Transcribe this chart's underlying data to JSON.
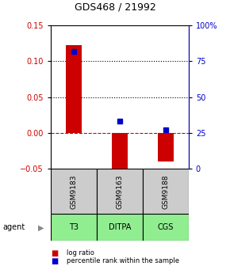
{
  "title": "GDS468 / 21992",
  "bar_positions": [
    1,
    2,
    3
  ],
  "bar_values": [
    0.122,
    -0.057,
    -0.04
  ],
  "bar_color": "#cc0000",
  "percentile_values_pct": [
    82,
    33,
    27
  ],
  "percentile_color": "#0000cc",
  "ylim_left": [
    -0.05,
    0.15
  ],
  "ylim_right": [
    0,
    100
  ],
  "yticks_left": [
    -0.05,
    0,
    0.05,
    0.1,
    0.15
  ],
  "yticks_right": [
    0,
    25,
    50,
    75,
    100
  ],
  "ytick_labels_right": [
    "0",
    "25",
    "50",
    "75",
    "100%"
  ],
  "dotted_lines": [
    0.05,
    0.1
  ],
  "sample_labels": [
    "GSM9183",
    "GSM9163",
    "GSM9188"
  ],
  "agent_labels": [
    "T3",
    "DITPA",
    "CGS"
  ],
  "agent_bg_color": "#90ee90",
  "sample_bg_color": "#cccccc",
  "legend_log_ratio": "log ratio",
  "legend_percentile": "percentile rank within the sample",
  "bar_width": 0.35,
  "agent_arrow_text": "agent"
}
